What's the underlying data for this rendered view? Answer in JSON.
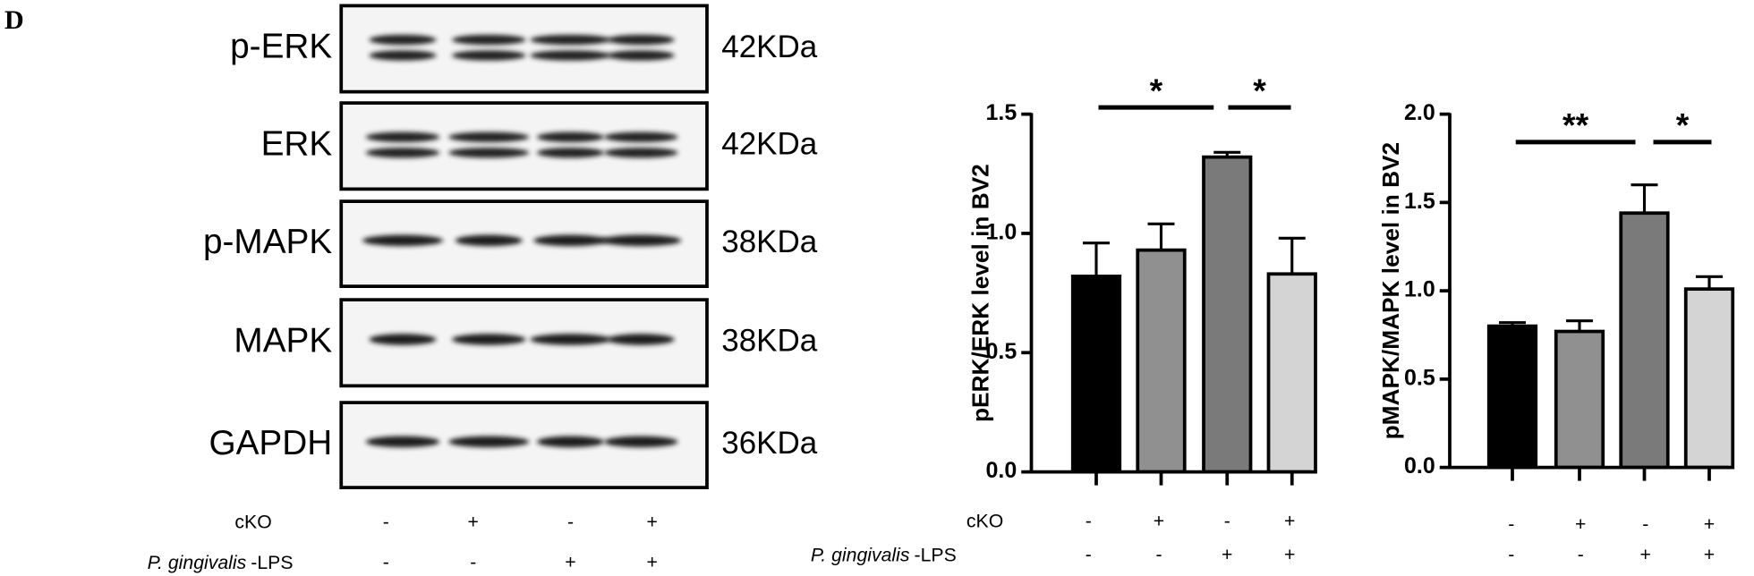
{
  "panel_label": "D",
  "blot": {
    "rows": [
      {
        "label": "p-ERK",
        "size": "42KDa"
      },
      {
        "label": "ERK",
        "size": "42KDa"
      },
      {
        "label": "p-MAPK",
        "size": "38KDa"
      },
      {
        "label": "MAPK",
        "size": "38KDa"
      },
      {
        "label": "GAPDH",
        "size": "36KDa"
      }
    ],
    "conditions": [
      {
        "label": "cKO",
        "signs": [
          "-",
          "+",
          "-",
          "+"
        ]
      },
      {
        "species": "P. gingivalis",
        "suffix": "-LPS",
        "signs": [
          "-",
          "-",
          "+",
          "+"
        ]
      }
    ]
  },
  "chart_data": [
    {
      "type": "bar",
      "ylabel": "pERK/ERK level in BV2",
      "values": [
        0.82,
        0.93,
        1.32,
        0.83
      ],
      "errors": [
        0.14,
        0.11,
        0.02,
        0.15
      ],
      "colors": [
        "#000000",
        "#909090",
        "#7a7a7a",
        "#d4d4d4"
      ],
      "ylim": [
        0,
        1.5
      ],
      "yticks": [
        {
          "value": 0,
          "label": "0.0"
        },
        {
          "value": 0.5,
          "label": "0.5"
        },
        {
          "value": 1,
          "label": "1.0"
        },
        {
          "value": 1.5,
          "label": "1.5"
        }
      ],
      "annotations": [
        "*",
        "*"
      ],
      "conditions": [
        {
          "label": "cKO",
          "signs": [
            "-",
            "+",
            "-",
            "+"
          ]
        },
        {
          "species": "P. gingivalis",
          "suffix": "-LPS",
          "signs": [
            "-",
            "-",
            "+",
            "+"
          ]
        }
      ]
    },
    {
      "type": "bar",
      "ylabel": "pMAPK/MAPK level in BV2",
      "values": [
        0.8,
        0.77,
        1.44,
        1.01
      ],
      "errors": [
        0.02,
        0.06,
        0.16,
        0.07
      ],
      "colors": [
        "#000000",
        "#909090",
        "#7a7a7a",
        "#d4d4d4"
      ],
      "ylim": [
        0,
        2
      ],
      "yticks": [
        {
          "value": 0,
          "label": "0.0"
        },
        {
          "value": 0.5,
          "label": "0.5"
        },
        {
          "value": 1,
          "label": "1.0"
        },
        {
          "value": 1.5,
          "label": "1.5"
        },
        {
          "value": 2,
          "label": "2.0"
        }
      ],
      "annotations": [
        "**",
        "*"
      ],
      "conditions": [
        {
          "signs": [
            "-",
            "+",
            "-",
            "+"
          ]
        },
        {
          "signs": [
            "-",
            "-",
            "+",
            "+"
          ]
        }
      ]
    }
  ]
}
